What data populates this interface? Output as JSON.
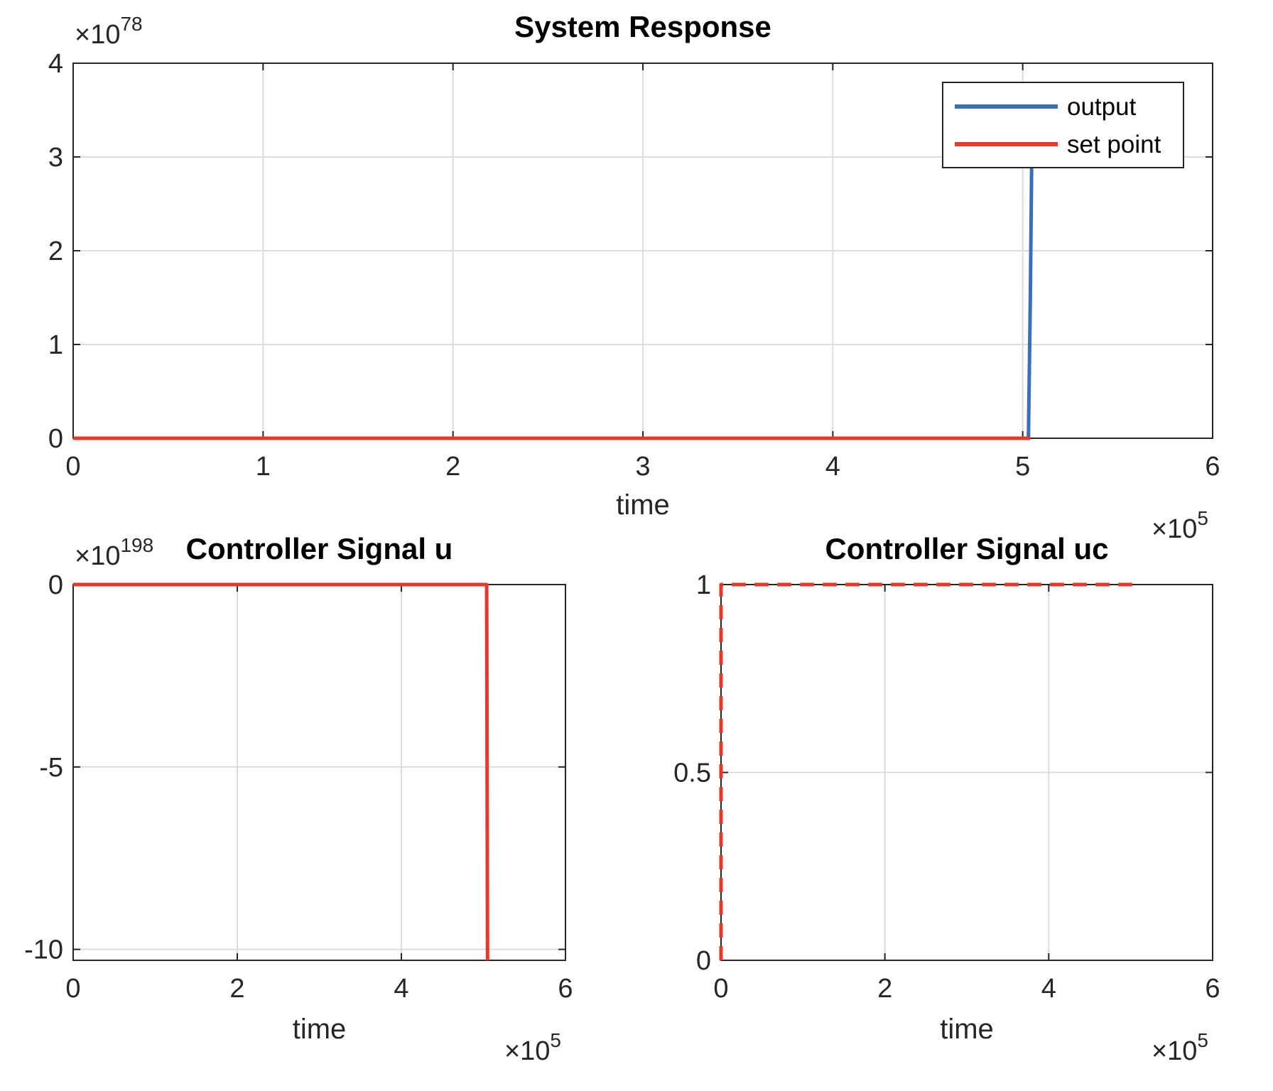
{
  "chart_data": [
    {
      "type": "line",
      "title": "System Response",
      "xlabel": "time",
      "ylabel": "",
      "xlim": [
        0,
        6
      ],
      "ylim": [
        0,
        4
      ],
      "x_exponent": "5",
      "y_exponent": "78",
      "x_multiplier_prefix": "×10",
      "y_multiplier_prefix": "×10",
      "xticks": [
        "0",
        "1",
        "2",
        "3",
        "4",
        "5",
        "6"
      ],
      "yticks": [
        "0",
        "1",
        "2",
        "3",
        "4"
      ],
      "grid": true,
      "legend_position": "top-right",
      "series": [
        {
          "name": "output",
          "color": "#3a6fbd",
          "style": "solid",
          "x": [
            0,
            5.03,
            5.04,
            5.05
          ],
          "y": [
            0,
            0,
            1.5,
            3.5
          ]
        },
        {
          "name": "set point",
          "color": "#e8382b",
          "style": "solid",
          "x": [
            0,
            5.04
          ],
          "y": [
            0,
            0
          ]
        }
      ]
    },
    {
      "type": "line",
      "title": "Controller Signal  u",
      "xlabel": "time",
      "ylabel": "",
      "xlim": [
        0,
        6
      ],
      "ylim": [
        -10.3,
        0
      ],
      "x_exponent": "5",
      "y_exponent": "198",
      "x_multiplier_prefix": "×10",
      "y_multiplier_prefix": "×10",
      "xticks": [
        "0",
        "2",
        "4",
        "6"
      ],
      "yticks": [
        "0",
        "-5",
        "-10"
      ],
      "grid": true,
      "series": [
        {
          "color": "#e8382b",
          "style": "solid",
          "x": [
            0,
            5.04,
            5.05
          ],
          "y": [
            0,
            0,
            -10.3
          ]
        }
      ]
    },
    {
      "type": "line",
      "title": "Controller Signal  uc",
      "xlabel": "time",
      "ylabel": "",
      "xlim": [
        0,
        6
      ],
      "ylim": [
        0,
        1
      ],
      "x_exponent": "5",
      "x_multiplier_prefix": "×10",
      "xticks": [
        "0",
        "2",
        "4",
        "6"
      ],
      "yticks": [
        "0",
        "0.5",
        "1"
      ],
      "grid": true,
      "series": [
        {
          "color": "#e8382b",
          "style": "dashed",
          "x": [
            0,
            0,
            5.04
          ],
          "y": [
            0,
            1,
            1
          ]
        }
      ]
    }
  ]
}
